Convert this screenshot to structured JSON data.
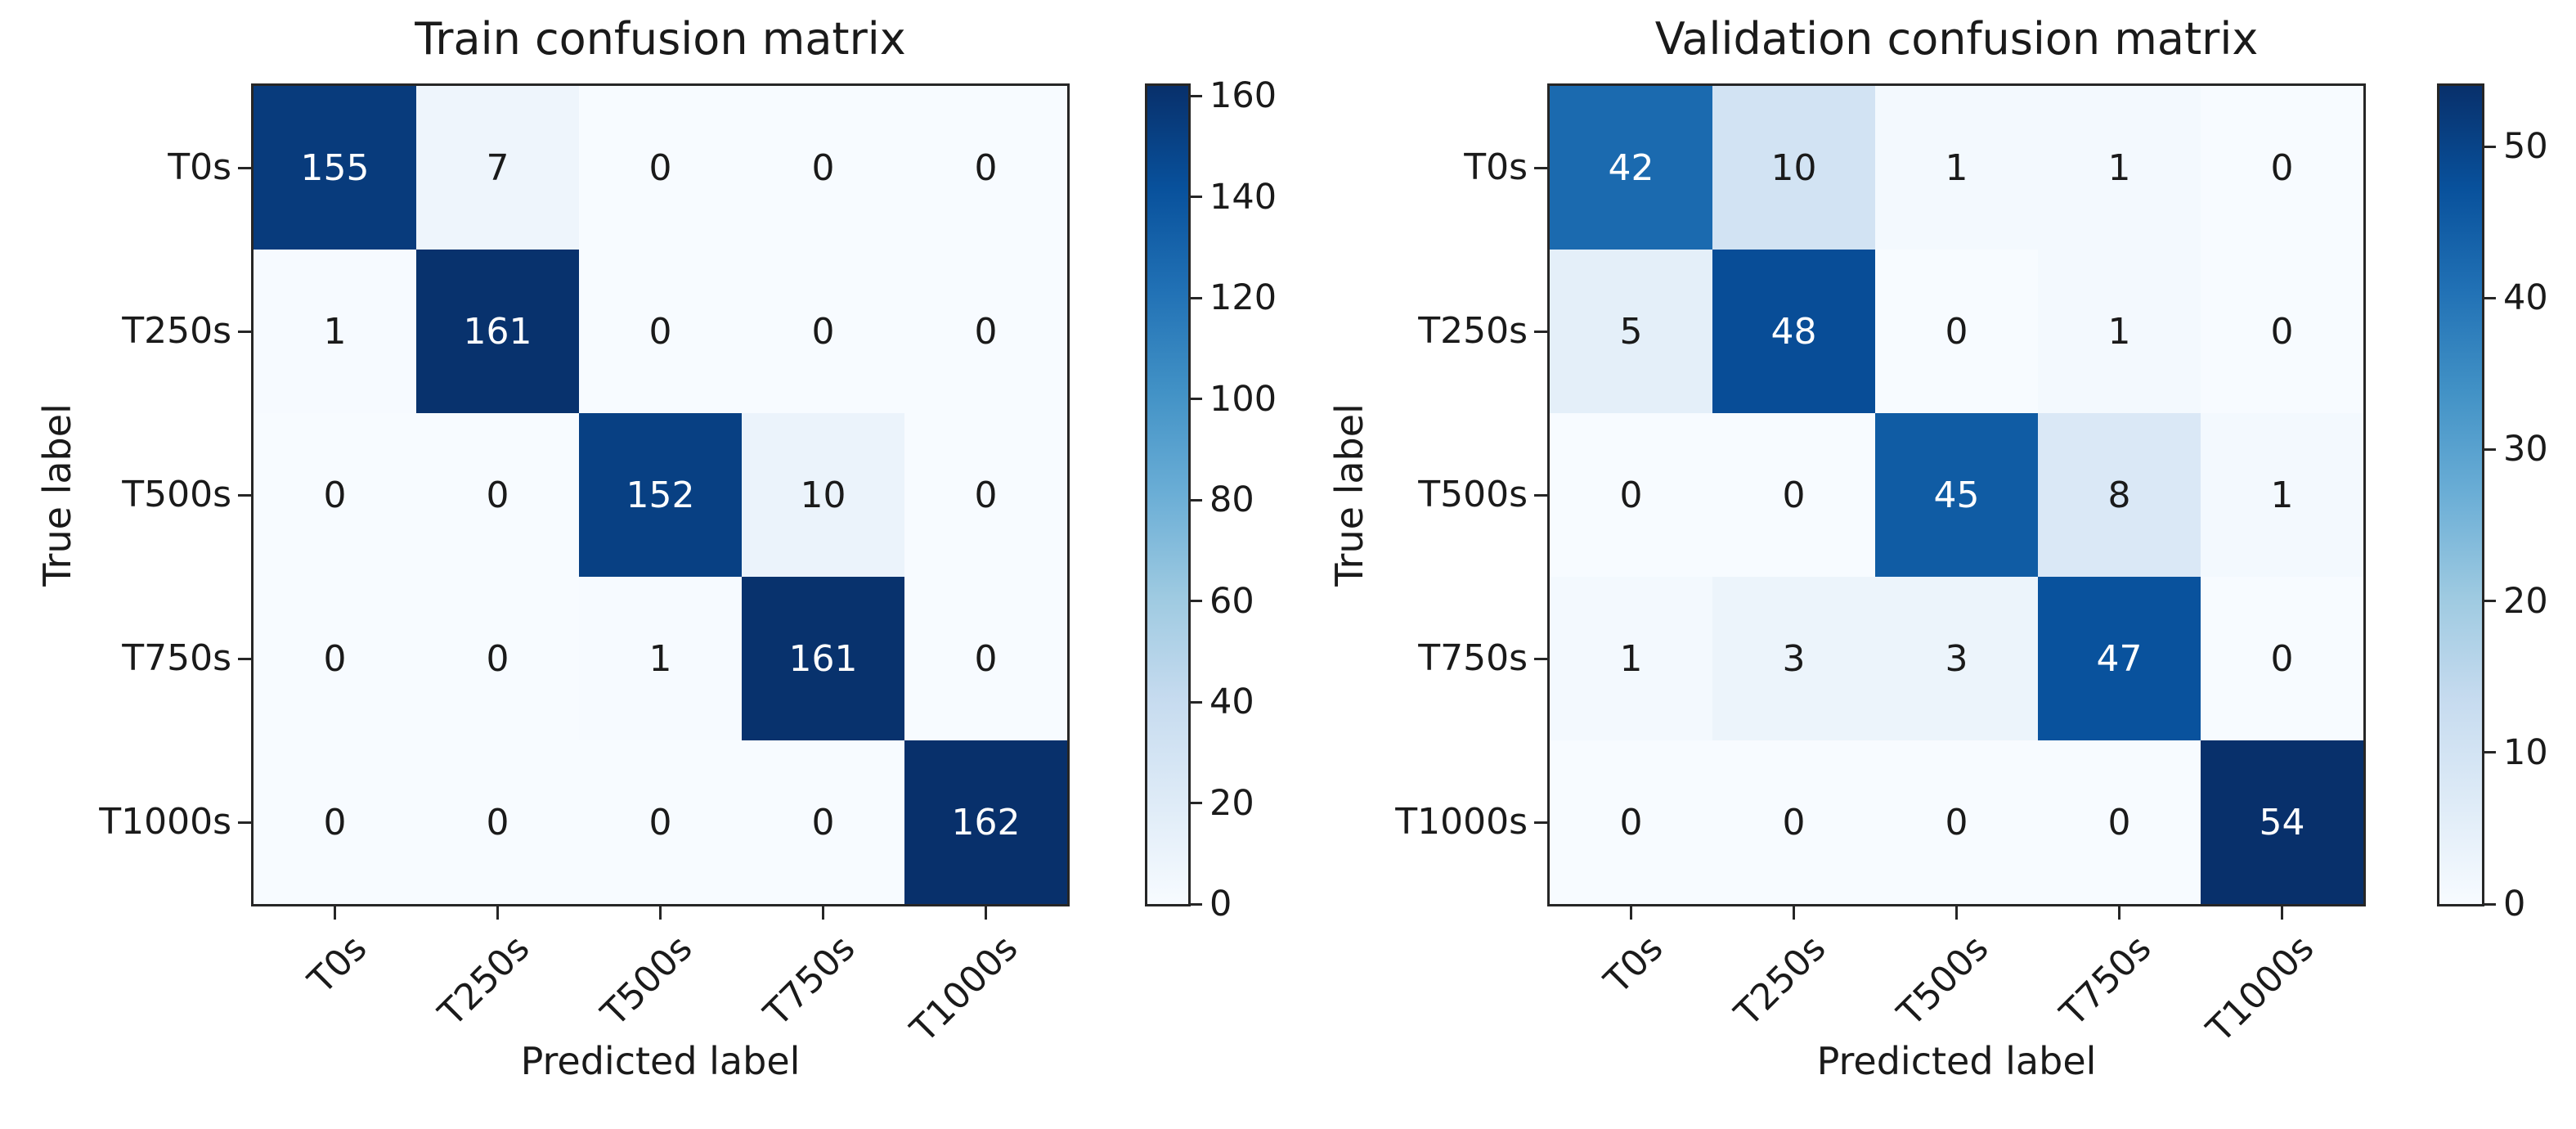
{
  "chart_data": [
    {
      "type": "heatmap",
      "title": "Train confusion matrix",
      "xlabel": "Predicted label",
      "ylabel": "True label",
      "x_tick_labels": [
        "T0s",
        "T250s",
        "T500s",
        "T750s",
        "T1000s"
      ],
      "y_tick_labels": [
        "T0s",
        "T250s",
        "T500s",
        "T750s",
        "T1000s"
      ],
      "matrix": [
        [
          155,
          7,
          0,
          0,
          0
        ],
        [
          1,
          161,
          0,
          0,
          0
        ],
        [
          0,
          0,
          152,
          10,
          0
        ],
        [
          0,
          0,
          1,
          161,
          0
        ],
        [
          0,
          0,
          0,
          0,
          162
        ]
      ],
      "vmin": 0,
      "vmax": 162,
      "colorbar_ticks": [
        0,
        20,
        40,
        60,
        80,
        100,
        120,
        140,
        160
      ],
      "colormap": "Blues",
      "legend_position": "right-colorbar",
      "grid": false
    },
    {
      "type": "heatmap",
      "title": "Validation confusion matrix",
      "xlabel": "Predicted label",
      "ylabel": "True label",
      "x_tick_labels": [
        "T0s",
        "T250s",
        "T500s",
        "T750s",
        "T1000s"
      ],
      "y_tick_labels": [
        "T0s",
        "T250s",
        "T500s",
        "T750s",
        "T1000s"
      ],
      "matrix": [
        [
          42,
          10,
          1,
          1,
          0
        ],
        [
          5,
          48,
          0,
          1,
          0
        ],
        [
          0,
          0,
          45,
          8,
          1
        ],
        [
          1,
          3,
          3,
          47,
          0
        ],
        [
          0,
          0,
          0,
          0,
          54
        ]
      ],
      "vmin": 0,
      "vmax": 54,
      "colorbar_ticks": [
        0,
        10,
        20,
        30,
        40,
        50
      ],
      "colormap": "Blues",
      "legend_position": "right-colorbar",
      "grid": false
    }
  ],
  "colors": {
    "background": "#ffffff",
    "spine": "#262626",
    "text": "#1a1a1a",
    "cell_text_dark_bg": "#ffffff",
    "cell_text_light_bg": "#1a1a1a",
    "blues_stops": [
      "#f7fbff",
      "#deebf7",
      "#c6dbef",
      "#9ecae1",
      "#6baed6",
      "#4292c6",
      "#2171b5",
      "#08519c",
      "#08306b"
    ]
  }
}
